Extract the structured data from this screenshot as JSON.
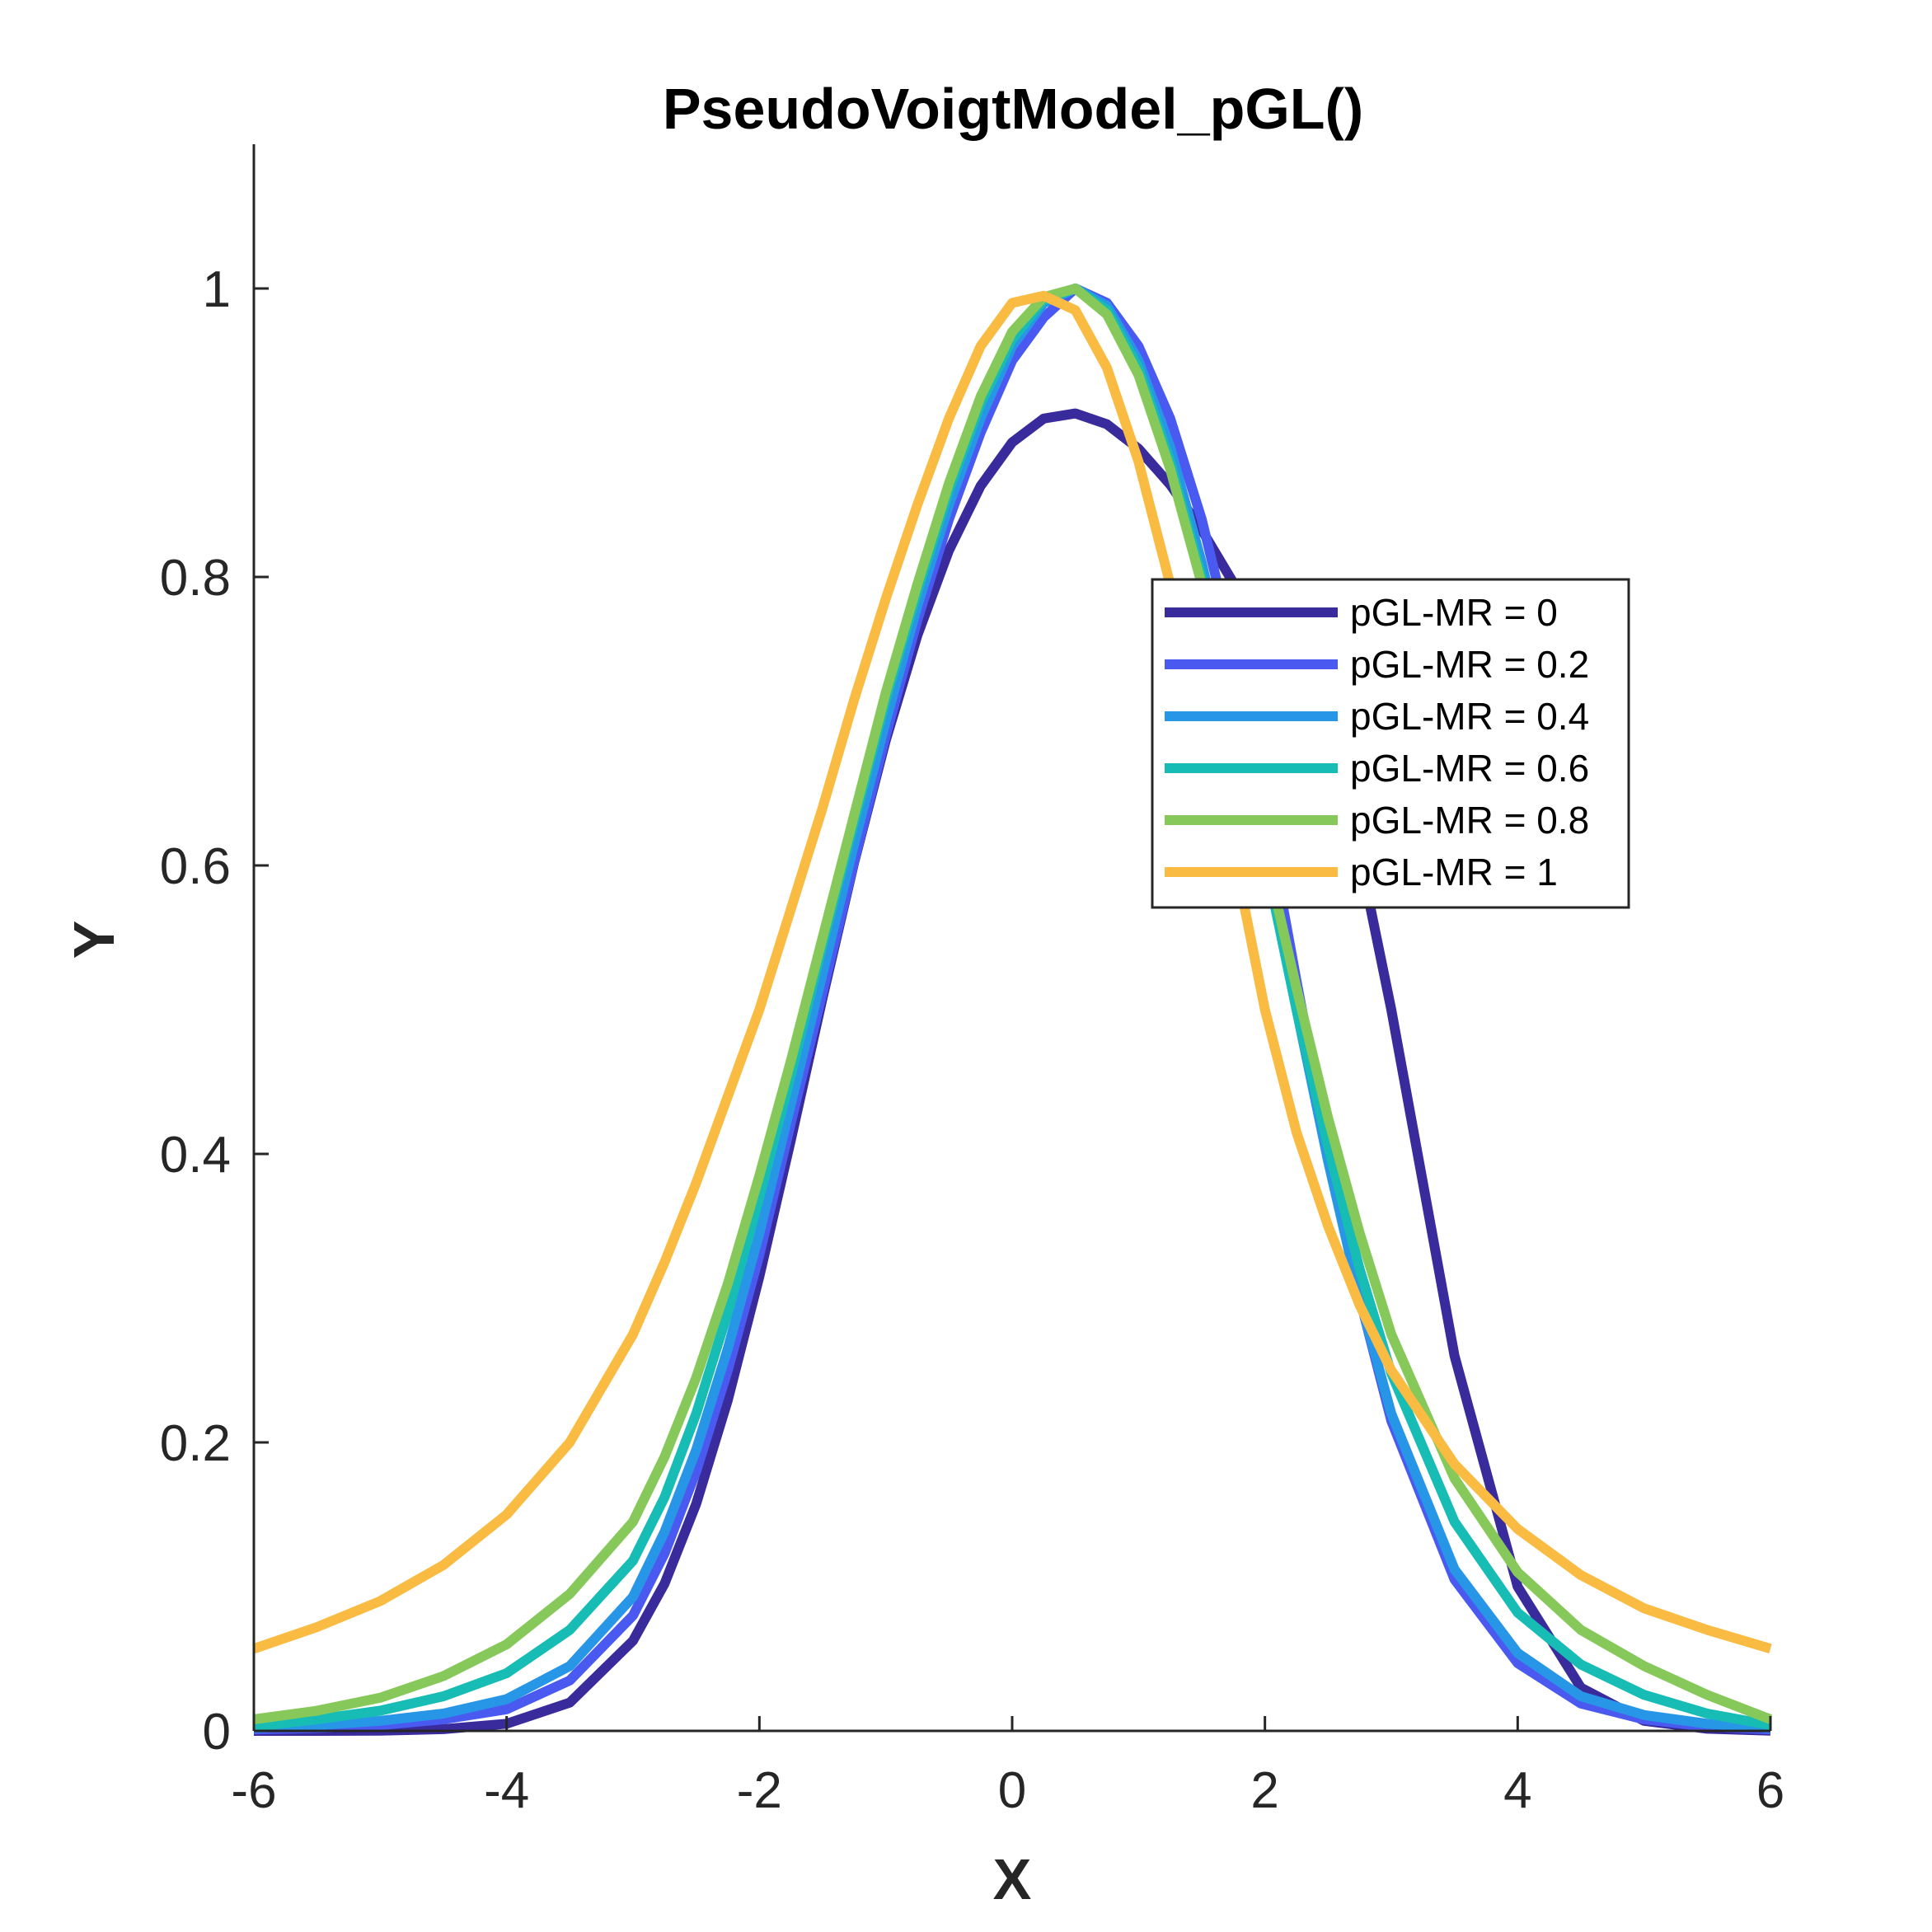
{
  "chart_data": {
    "type": "line",
    "title": "PseudoVoigtModel_pGL()",
    "xlabel": "X",
    "ylabel": "Y",
    "xlim": [
      -6,
      6
    ],
    "ylim": [
      0,
      1.1
    ],
    "xticks": [
      -6,
      -4,
      -2,
      0,
      2,
      4,
      6
    ],
    "yticks": [
      0,
      0.2,
      0.4,
      0.6,
      0.8,
      1
    ],
    "xtick_labels": [
      "-6",
      "-4",
      "-2",
      "0",
      "2",
      "4",
      "6"
    ],
    "ytick_labels": [
      "0",
      "0.2",
      "0.4",
      "0.6",
      "0.8",
      "1"
    ],
    "grid": false,
    "legend_position": "right",
    "x": [
      -6,
      -5.5,
      -5,
      -4.5,
      -4,
      -3.5,
      -3,
      -2.75,
      -2.5,
      -2.25,
      -2,
      -1.75,
      -1.5,
      -1.25,
      -1,
      -0.75,
      -0.5,
      -0.25,
      0,
      0.25,
      0.5,
      0.75,
      1,
      1.25,
      1.5,
      1.75,
      2,
      2.25,
      2.5,
      2.75,
      3,
      3.5,
      4,
      4.5,
      5,
      5.5,
      6
    ],
    "series": [
      {
        "name": "pGL-MR = 0",
        "color": "#3a2b9d",
        "values": [
          0.0,
          0.0,
          0.0002,
          0.0012,
          0.005,
          0.0196,
          0.0625,
          0.1021,
          0.1575,
          0.2293,
          0.315,
          0.4101,
          0.5081,
          0.602,
          0.6868,
          0.7595,
          0.8184,
          0.8631,
          0.8933,
          0.9098,
          0.9134,
          0.9059,
          0.8889,
          0.864,
          0.8327,
          0.796,
          0.7545,
          0.709,
          0.6597,
          0.607,
          0.5,
          0.26,
          0.1,
          0.03,
          0.007,
          0.0015,
          0.0002
        ]
      },
      {
        "name": "pGL-MR = 0.2",
        "color": "#4a5af0",
        "values": [
          0.001,
          0.002,
          0.004,
          0.008,
          0.015,
          0.035,
          0.08,
          0.123,
          0.18,
          0.25,
          0.33,
          0.422,
          0.512,
          0.603,
          0.69,
          0.77,
          0.84,
          0.9,
          0.95,
          0.98,
          1.0,
          0.99,
          0.96,
          0.91,
          0.84,
          0.75,
          0.64,
          0.52,
          0.405,
          0.3,
          0.215,
          0.105,
          0.047,
          0.019,
          0.008,
          0.003,
          0.001
        ]
      },
      {
        "name": "pGL-MR = 0.4",
        "color": "#2896e6",
        "values": [
          0.002,
          0.004,
          0.007,
          0.012,
          0.022,
          0.045,
          0.093,
          0.138,
          0.195,
          0.265,
          0.345,
          0.435,
          0.525,
          0.615,
          0.7,
          0.78,
          0.85,
          0.91,
          0.96,
          0.99,
          1.0,
          0.988,
          0.95,
          0.89,
          0.81,
          0.715,
          0.61,
          0.5,
          0.395,
          0.3,
          0.22,
          0.112,
          0.054,
          0.024,
          0.011,
          0.005,
          0.002
        ]
      },
      {
        "name": "pGL-MR = 0.6",
        "color": "#17bcb4",
        "values": [
          0.003,
          0.008,
          0.014,
          0.024,
          0.04,
          0.07,
          0.118,
          0.162,
          0.22,
          0.29,
          0.37,
          0.455,
          0.545,
          0.63,
          0.715,
          0.79,
          0.86,
          0.92,
          0.965,
          0.992,
          1.0,
          0.985,
          0.945,
          0.88,
          0.8,
          0.705,
          0.605,
          0.5,
          0.405,
          0.32,
          0.248,
          0.145,
          0.082,
          0.046,
          0.025,
          0.012,
          0.004
        ]
      },
      {
        "name": "pGL-MR = 0.8",
        "color": "#86c95a",
        "values": [
          0.008,
          0.014,
          0.023,
          0.038,
          0.06,
          0.095,
          0.145,
          0.19,
          0.245,
          0.31,
          0.385,
          0.465,
          0.55,
          0.635,
          0.72,
          0.795,
          0.865,
          0.925,
          0.97,
          0.994,
          1.0,
          0.982,
          0.94,
          0.875,
          0.795,
          0.705,
          0.61,
          0.515,
          0.425,
          0.345,
          0.275,
          0.175,
          0.11,
          0.07,
          0.045,
          0.025,
          0.008
        ]
      },
      {
        "name": "pGL-MR = 1",
        "color": "#f9bb41",
        "values": [
          0.057,
          0.072,
          0.09,
          0.115,
          0.15,
          0.2,
          0.275,
          0.325,
          0.38,
          0.44,
          0.5,
          0.57,
          0.64,
          0.715,
          0.785,
          0.85,
          0.91,
          0.96,
          0.99,
          0.995,
          0.985,
          0.945,
          0.88,
          0.795,
          0.705,
          0.61,
          0.5,
          0.415,
          0.35,
          0.295,
          0.25,
          0.185,
          0.14,
          0.108,
          0.085,
          0.07,
          0.057
        ]
      }
    ]
  }
}
